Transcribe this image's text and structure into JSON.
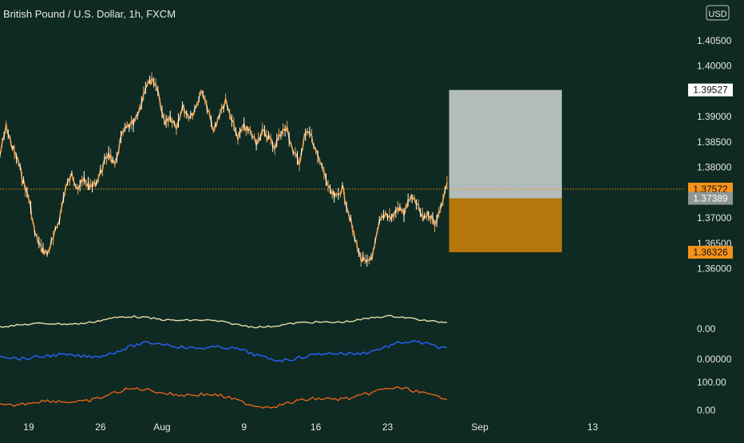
{
  "header": {
    "title": "British Pound / U.S. Dollar, 1h, FXCM",
    "currency": "USD"
  },
  "colors": {
    "background": "#0e2a22",
    "candle": "#f2a652",
    "candle_alt": "#ffffff",
    "last_price_line": "#f7931a",
    "target_zone": "#b3bcb8",
    "stop_zone": "#b5760c",
    "label_target": "#ffffff",
    "label_last": "#f7931a",
    "label_entry": "#8f9696",
    "label_stop": "#f7931a",
    "indicator_1": "#e8dca8",
    "indicator_2": "#2962ff",
    "indicator_3": "#e8611a"
  },
  "chart_data": {
    "type": "line",
    "title": "British Pound / U.S. Dollar, 1h, FXCM",
    "ylim": [
      1.355,
      1.4075
    ],
    "yticks": [
      "1.40500",
      "1.40000",
      "1.39000",
      "1.38500",
      "1.38000",
      "1.37000",
      "1.36500",
      "1.36000"
    ],
    "ytick_values": [
      1.405,
      1.4,
      1.39,
      1.385,
      1.38,
      1.37,
      1.365,
      1.36
    ],
    "xticks": [
      "19",
      "26",
      "Aug",
      "9",
      "16",
      "23",
      "Sep",
      "13"
    ],
    "xtick_days": [
      0,
      7,
      13,
      21,
      28,
      35,
      44,
      55
    ],
    "x_range_days": [
      -2.8,
      64.0
    ],
    "price_series": {
      "name": "GBPUSD",
      "x_days": [
        -2.8,
        -2.2,
        -1.6,
        -1.0,
        -0.5,
        0,
        0.6,
        1.2,
        1.8,
        2.4,
        3.0,
        3.6,
        4.2,
        4.8,
        5.4,
        6.0,
        6.6,
        7.2,
        7.8,
        8.4,
        9.0,
        9.6,
        10.2,
        10.8,
        11.4,
        12.0,
        12.6,
        13.2,
        13.8,
        14.4,
        15.0,
        15.6,
        16.2,
        16.8,
        17.4,
        18.0,
        18.6,
        19.2,
        19.8,
        20.4,
        21.0,
        21.6,
        22.2,
        22.8,
        23.4,
        24.0,
        24.6,
        25.2,
        25.8,
        26.4,
        27.0,
        27.6,
        28.2,
        28.8,
        29.4,
        30.0,
        30.6,
        31.2,
        31.8,
        32.4,
        33.0,
        33.6,
        34.2,
        34.8,
        35.4,
        36.0,
        36.6,
        37.2,
        37.8,
        38.4,
        39.0,
        39.6,
        40.2,
        40.8
      ],
      "y": [
        1.3825,
        1.388,
        1.384,
        1.381,
        1.377,
        1.374,
        1.367,
        1.364,
        1.363,
        1.366,
        1.37,
        1.376,
        1.3785,
        1.376,
        1.3775,
        1.376,
        1.377,
        1.38,
        1.383,
        1.38,
        1.386,
        1.388,
        1.3885,
        1.391,
        1.396,
        1.397,
        1.395,
        1.389,
        1.39,
        1.388,
        1.392,
        1.39,
        1.391,
        1.395,
        1.392,
        1.387,
        1.3905,
        1.393,
        1.389,
        1.386,
        1.388,
        1.387,
        1.385,
        1.387,
        1.386,
        1.384,
        1.387,
        1.3875,
        1.383,
        1.381,
        1.387,
        1.386,
        1.382,
        1.379,
        1.375,
        1.374,
        1.376,
        1.371,
        1.366,
        1.362,
        1.361,
        1.363,
        1.369,
        1.371,
        1.37,
        1.372,
        1.371,
        1.374,
        1.373,
        1.37,
        1.371,
        1.369,
        1.372,
        1.377
      ]
    },
    "position": {
      "target": 1.39527,
      "entry": 1.37389,
      "stop": 1.36326,
      "x_start_day": 41.0,
      "x_end_day": 52.0
    },
    "last_price": 1.37572,
    "price_labels": [
      "1.39527",
      "1.37572",
      "1.37389",
      "1.36326"
    ],
    "indicator_labels": [
      "0.00",
      "0.00000",
      "100.00",
      "0.00"
    ]
  }
}
